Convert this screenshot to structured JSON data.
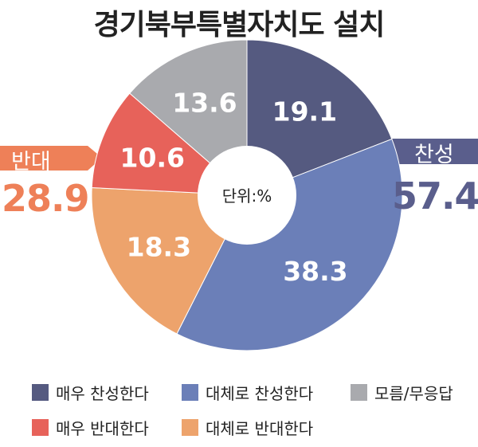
{
  "title": "경기북부특별자치도 설치",
  "unit_label": "단위:%",
  "summary": {
    "against": {
      "label": "반대",
      "value": "28.9",
      "color": "#ee8058"
    },
    "for": {
      "label": "찬성",
      "value": "57.4",
      "color": "#5a5e8c"
    }
  },
  "chart_data": {
    "type": "pie",
    "title": "경기북부특별자치도 설치",
    "unit": "단위:%",
    "slices": [
      {
        "label": "매우 찬성한다",
        "value": 19.1,
        "display": "19.1",
        "color": "#555a80"
      },
      {
        "label": "대체로 찬성한다",
        "value": 38.3,
        "display": "38.3",
        "color": "#6b7fb8"
      },
      {
        "label": "대체로 반대한다",
        "value": 18.3,
        "display": "18.3",
        "color": "#eda36c"
      },
      {
        "label": "매우 반대한다",
        "value": 10.6,
        "display": "10.6",
        "color": "#e7625a"
      },
      {
        "label": "모름/무응답",
        "value": 13.6,
        "display": "13.6",
        "color": "#a9aaae"
      }
    ],
    "legend_order": [
      "매우 찬성한다",
      "대체로 찬성한다",
      "모름/무응답",
      "매우 반대한다",
      "대체로 반대한다"
    ],
    "legend_placement": "bottom"
  }
}
